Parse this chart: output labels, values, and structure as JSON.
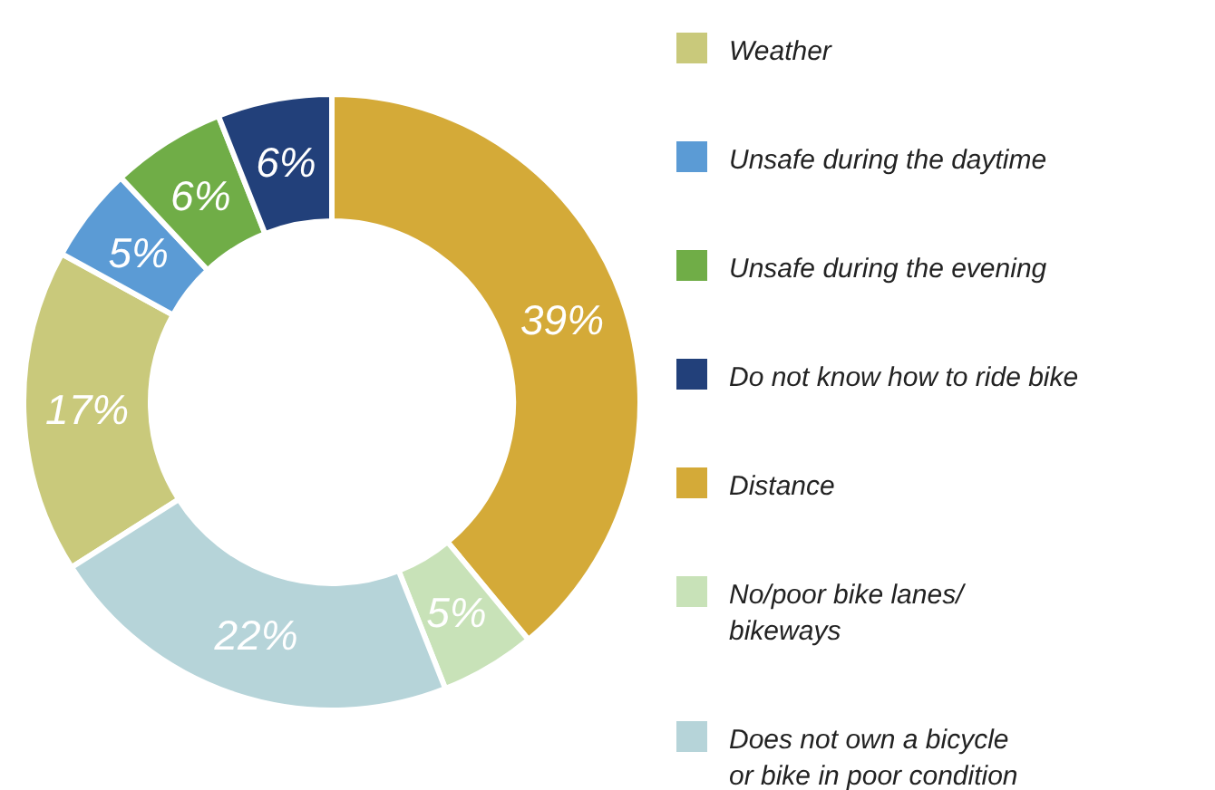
{
  "chart_data": {
    "type": "donut",
    "categories": [
      "Weather",
      "Unsafe during the daytime",
      "Unsafe during the evening",
      "Do not know how to ride bike",
      "Distance",
      "No/poor bike lanes/\nbikeways",
      "Does not own a bicycle\nor bike in poor condition"
    ],
    "values": [
      17,
      5,
      6,
      6,
      39,
      5,
      22
    ],
    "colors": [
      "#c9c97b",
      "#5b9bd5",
      "#70ad47",
      "#22407a",
      "#d4aa38",
      "#c8e2b8",
      "#b6d4d9"
    ],
    "value_labels": [
      "17%",
      "5%",
      "6%",
      "6%",
      "39%",
      "5%",
      "22%"
    ],
    "legend": "right"
  }
}
